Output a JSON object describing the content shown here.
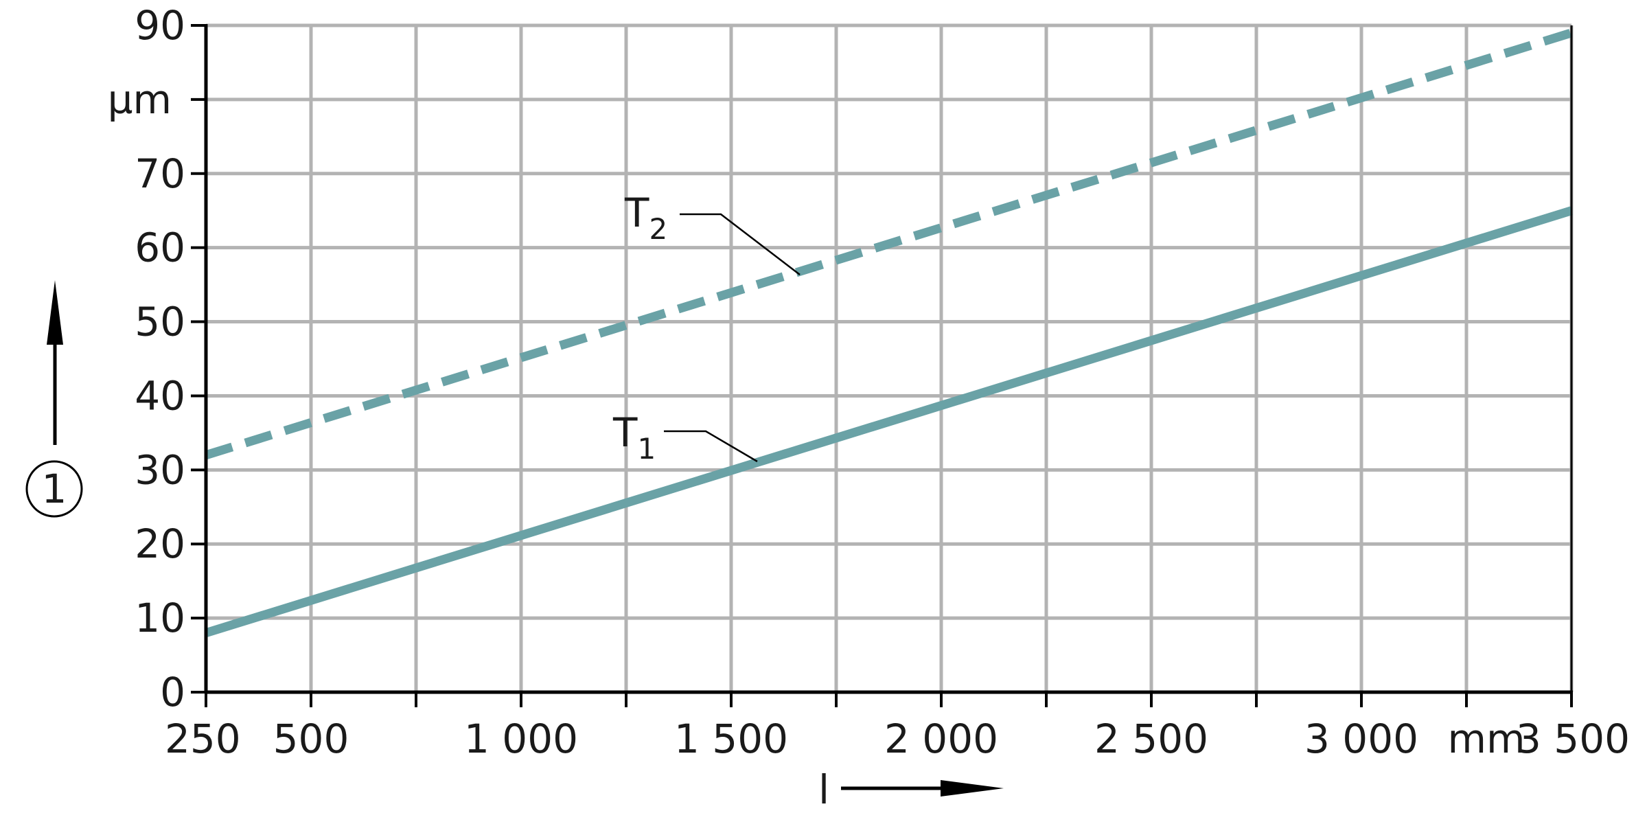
{
  "chart_data": {
    "type": "line",
    "xlabel": "l",
    "ylabel": "①",
    "x_unit": "mm",
    "y_unit": "µm",
    "xlim": [
      250,
      3500
    ],
    "ylim": [
      0,
      90
    ],
    "x_ticks": [
      250,
      500,
      750,
      1000,
      1250,
      1500,
      1750,
      2000,
      2250,
      2500,
      2750,
      3000,
      3250,
      3500
    ],
    "x_tick_labels": [
      {
        "value": 250,
        "label": "250"
      },
      {
        "value": 500,
        "label": "500"
      },
      {
        "value": 1000,
        "label": "1 000"
      },
      {
        "value": 1500,
        "label": "1 500"
      },
      {
        "value": 2000,
        "label": "2 000"
      },
      {
        "value": 2500,
        "label": "2 500"
      },
      {
        "value": 3000,
        "label": "3 000"
      },
      {
        "value": 3500,
        "label": "3 500"
      }
    ],
    "y_ticks": [
      0,
      10,
      20,
      30,
      40,
      50,
      60,
      70,
      80,
      90
    ],
    "y_tick_labels": [
      {
        "value": 0,
        "label": "0"
      },
      {
        "value": 10,
        "label": "10"
      },
      {
        "value": 20,
        "label": "20"
      },
      {
        "value": 30,
        "label": "30"
      },
      {
        "value": 40,
        "label": "40"
      },
      {
        "value": 50,
        "label": "50"
      },
      {
        "value": 60,
        "label": "60"
      },
      {
        "value": 70,
        "label": "70"
      },
      {
        "value": 90,
        "label": "90"
      }
    ],
    "grid": true,
    "series": [
      {
        "name": "T1",
        "label_main": "T",
        "label_sub": "1",
        "style": "solid",
        "color": "#6aa2a6",
        "x": [
          250,
          3500
        ],
        "y": [
          8,
          65
        ]
      },
      {
        "name": "T2",
        "label_main": "T",
        "label_sub": "2",
        "style": "dashed",
        "color": "#6aa2a6",
        "x": [
          250,
          3500
        ],
        "y": [
          32,
          89
        ]
      }
    ]
  }
}
